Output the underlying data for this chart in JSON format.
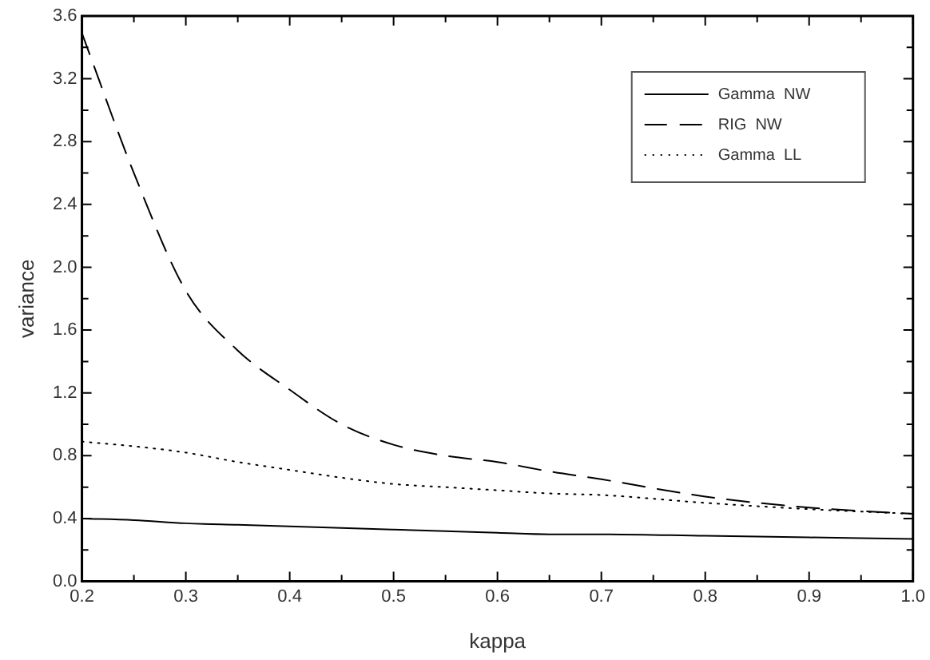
{
  "chart_data": {
    "type": "line",
    "xlabel": "kappa",
    "ylabel": "variance",
    "x": [
      0.2,
      0.25,
      0.3,
      0.35,
      0.4,
      0.45,
      0.5,
      0.55,
      0.6,
      0.65,
      0.7,
      0.8,
      0.9,
      1.0
    ],
    "xlim": [
      0.2,
      1.0
    ],
    "xticks": [
      0.2,
      {
        "value": 0.25,
        "label": null
      },
      0.3,
      {
        "value": 0.35,
        "label": null
      },
      0.4,
      {
        "value": 0.45,
        "label": null
      },
      0.5,
      {
        "value": 0.55,
        "label": null
      },
      0.6,
      {
        "value": 0.65,
        "label": null
      },
      0.7,
      {
        "value": 0.75,
        "label": null
      },
      0.8,
      {
        "value": 0.85,
        "label": null
      },
      0.9,
      {
        "value": 0.95,
        "label": null
      },
      {
        "value": 1.0,
        "label": "1.0"
      }
    ],
    "ylim": [
      0,
      3.6
    ],
    "yticks": [
      {
        "value": 0,
        "label": "0.0"
      },
      {
        "value": 0.2,
        "label": null
      },
      0.4,
      {
        "value": 0.6,
        "label": null
      },
      0.8,
      {
        "value": 1.0,
        "label": null
      },
      1.2,
      {
        "value": 1.4,
        "label": null
      },
      1.6,
      {
        "value": 1.8,
        "label": null
      },
      {
        "value": 2.0,
        "label": "2.0"
      },
      {
        "value": 2.2,
        "label": null
      },
      2.4,
      {
        "value": 2.6,
        "label": null
      },
      2.8,
      {
        "value": 3.0,
        "label": null
      },
      3.2,
      {
        "value": 3.4,
        "label": null
      },
      3.6
    ],
    "series": [
      {
        "name": "Gamma  NW",
        "color": "#000000",
        "line_style": "solid",
        "values": [
          0.4,
          0.39,
          0.37,
          0.36,
          0.35,
          0.34,
          0.33,
          0.32,
          0.31,
          0.3,
          0.3,
          0.29,
          0.28,
          0.27
        ]
      },
      {
        "name": "RIG  NW",
        "color": "#000000",
        "line_style": "dashed",
        "values": [
          3.49,
          2.6,
          1.85,
          1.47,
          1.22,
          1.0,
          0.87,
          0.8,
          0.76,
          0.7,
          0.65,
          0.54,
          0.47,
          0.43
        ]
      },
      {
        "name": "Gamma  LL",
        "color": "#000000",
        "line_style": "dotted",
        "values": [
          0.89,
          0.86,
          0.82,
          0.76,
          0.71,
          0.66,
          0.62,
          0.6,
          0.58,
          0.56,
          0.55,
          0.5,
          0.46,
          0.43
        ]
      }
    ],
    "grid": false,
    "legend": "top right",
    "marker": "none"
  }
}
